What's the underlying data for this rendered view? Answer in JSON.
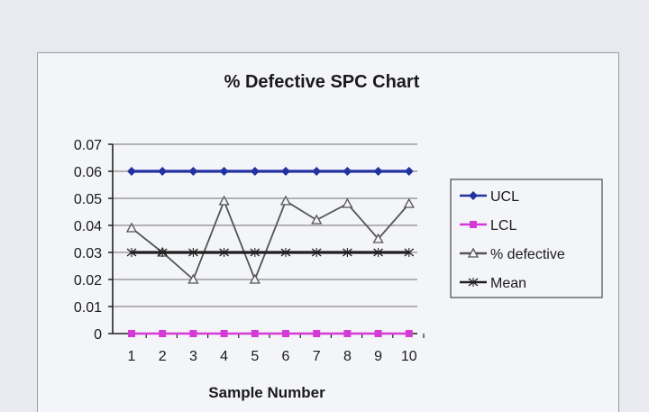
{
  "chart_data": {
    "type": "line",
    "title": "% Defective SPC Chart",
    "xlabel": "Sample Number",
    "ylabel": "",
    "categories": [
      "1",
      "2",
      "3",
      "4",
      "5",
      "6",
      "7",
      "8",
      "9",
      "10"
    ],
    "ylim": [
      0,
      0.07
    ],
    "yticks": [
      "0",
      "0.01",
      "0.02",
      "0.03",
      "0.04",
      "0.05",
      "0.06",
      "0.07"
    ],
    "grid": true,
    "legend_position": "right",
    "series": [
      {
        "name": "UCL",
        "values": [
          0.06,
          0.06,
          0.06,
          0.06,
          0.06,
          0.06,
          0.06,
          0.06,
          0.06,
          0.06
        ],
        "color": "#2233a0",
        "marker": "diamond"
      },
      {
        "name": "LCL",
        "values": [
          0,
          0,
          0,
          0,
          0,
          0,
          0,
          0,
          0,
          0
        ],
        "color": "#d63ad6",
        "marker": "square"
      },
      {
        "name": "% defective",
        "values": [
          0.039,
          0.03,
          0.02,
          0.049,
          0.02,
          0.049,
          0.042,
          0.048,
          0.035,
          0.048
        ],
        "color": "#555555",
        "marker": "triangle"
      },
      {
        "name": "Mean",
        "values": [
          0.03,
          0.03,
          0.03,
          0.03,
          0.03,
          0.03,
          0.03,
          0.03,
          0.03,
          0.03
        ],
        "color": "#1f1f1f",
        "marker": "x"
      }
    ]
  }
}
